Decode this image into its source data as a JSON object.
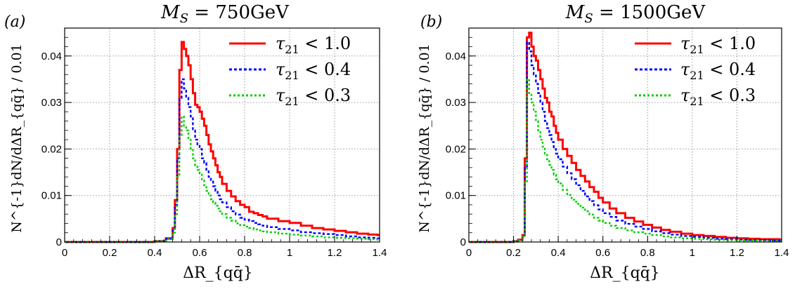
{
  "chart_data": [
    {
      "type": "line",
      "panel": "(a)",
      "title": "M_S = 750GeV",
      "title_main": "M",
      "title_sub": "S",
      "title_rest": " = 750GeV",
      "xlabel": "ΔR_{qq̄}",
      "ylabel": "N^{-1}dN/dΔR_{qq̄} / 0.01",
      "xlim": [
        0,
        1.4
      ],
      "ylim": [
        0,
        0.046
      ],
      "xticks": [
        "0",
        "0.2",
        "0.4",
        "0.6",
        "0.8",
        "1",
        "1.2",
        "1.4"
      ],
      "yticks": [
        "0",
        "0.01",
        "0.02",
        "0.03",
        "0.04"
      ],
      "grid": true,
      "legend_position": "top-right",
      "x": [
        0.0,
        0.1,
        0.2,
        0.3,
        0.4,
        0.45,
        0.48,
        0.49,
        0.5,
        0.51,
        0.52,
        0.53,
        0.54,
        0.55,
        0.56,
        0.57,
        0.58,
        0.59,
        0.6,
        0.61,
        0.62,
        0.63,
        0.64,
        0.65,
        0.66,
        0.67,
        0.68,
        0.69,
        0.7,
        0.72,
        0.74,
        0.76,
        0.78,
        0.8,
        0.82,
        0.84,
        0.86,
        0.88,
        0.9,
        0.95,
        1.0,
        1.05,
        1.1,
        1.15,
        1.2,
        1.25,
        1.3,
        1.35,
        1.39
      ],
      "series": [
        {
          "name": "τ21 < 1.0",
          "legend_sym": "τ",
          "legend_sub": "21",
          "legend_rest": " < 1.0",
          "color": "#ff0000",
          "dash": "",
          "values": [
            0.0,
            0.0,
            0.0,
            0.0,
            0.0002,
            0.0008,
            0.003,
            0.009,
            0.02,
            0.037,
            0.043,
            0.0415,
            0.04,
            0.038,
            0.035,
            0.032,
            0.0295,
            0.029,
            0.028,
            0.0265,
            0.025,
            0.023,
            0.021,
            0.0195,
            0.018,
            0.0165,
            0.015,
            0.014,
            0.0125,
            0.011,
            0.0098,
            0.0088,
            0.008,
            0.0075,
            0.0065,
            0.0062,
            0.0058,
            0.0055,
            0.005,
            0.0045,
            0.0041,
            0.0035,
            0.003,
            0.0027,
            0.0024,
            0.0021,
            0.0018,
            0.0016,
            0.0015
          ]
        },
        {
          "name": "τ21 < 0.4",
          "legend_sym": "τ",
          "legend_sub": "21",
          "legend_rest": " < 0.4",
          "color": "#0000ff",
          "dash": "4 3",
          "values": [
            0.0,
            0.0,
            0.0,
            0.0,
            0.0002,
            0.0007,
            0.0025,
            0.008,
            0.018,
            0.031,
            0.035,
            0.033,
            0.031,
            0.029,
            0.027,
            0.024,
            0.022,
            0.021,
            0.02,
            0.018,
            0.017,
            0.0155,
            0.014,
            0.013,
            0.012,
            0.011,
            0.01,
            0.0092,
            0.0085,
            0.0075,
            0.0066,
            0.0059,
            0.0052,
            0.0048,
            0.0045,
            0.0041,
            0.0038,
            0.0035,
            0.0032,
            0.0028,
            0.0025,
            0.0021,
            0.0019,
            0.0017,
            0.0015,
            0.0012,
            0.001,
            0.0009,
            0.0008
          ]
        },
        {
          "name": "τ21 < 0.3",
          "legend_sym": "τ",
          "legend_sub": "21",
          "legend_rest": " < 0.3",
          "color": "#00cc00",
          "dash": "3 3",
          "values": [
            0.0,
            0.0,
            0.0,
            0.0,
            0.0002,
            0.0006,
            0.002,
            0.006,
            0.014,
            0.023,
            0.027,
            0.025,
            0.024,
            0.022,
            0.02,
            0.018,
            0.0165,
            0.0155,
            0.0145,
            0.0133,
            0.0122,
            0.011,
            0.01,
            0.0092,
            0.0085,
            0.0078,
            0.0072,
            0.0066,
            0.006,
            0.0052,
            0.0046,
            0.004,
            0.0036,
            0.0033,
            0.003,
            0.0027,
            0.0025,
            0.0023,
            0.0021,
            0.0018,
            0.0016,
            0.0014,
            0.0012,
            0.001,
            0.0009,
            0.0008,
            0.0007,
            0.0006,
            0.0005
          ]
        }
      ]
    },
    {
      "type": "line",
      "panel": "(b)",
      "title": "M_S = 1500GeV",
      "title_main": "M",
      "title_sub": "S",
      "title_rest": " = 1500GeV",
      "xlabel": "ΔR_{qq̄}",
      "ylabel": "N^{-1}dN/dΔR_{qq̄} / 0.01",
      "xlim": [
        0,
        1.4
      ],
      "ylim": [
        0,
        0.046
      ],
      "xticks": [
        "0",
        "0.2",
        "0.4",
        "0.6",
        "0.8",
        "1",
        "1.2",
        "1.4"
      ],
      "yticks": [
        "0",
        "0.01",
        "0.02",
        "0.03",
        "0.04"
      ],
      "grid": true,
      "legend_position": "top-right",
      "x": [
        0.0,
        0.1,
        0.2,
        0.22,
        0.24,
        0.25,
        0.26,
        0.27,
        0.28,
        0.29,
        0.3,
        0.31,
        0.32,
        0.33,
        0.34,
        0.35,
        0.36,
        0.37,
        0.38,
        0.39,
        0.4,
        0.42,
        0.44,
        0.46,
        0.48,
        0.5,
        0.52,
        0.54,
        0.56,
        0.58,
        0.6,
        0.63,
        0.66,
        0.7,
        0.74,
        0.78,
        0.82,
        0.86,
        0.9,
        0.95,
        1.0,
        1.05,
        1.1,
        1.15,
        1.2,
        1.25,
        1.3,
        1.35,
        1.39
      ],
      "series": [
        {
          "name": "τ21 < 1.0",
          "legend_sym": "τ",
          "legend_sub": "21",
          "legend_rest": " < 1.0",
          "color": "#ff0000",
          "dash": "",
          "values": [
            0.0,
            0.0,
            0.0002,
            0.0005,
            0.0015,
            0.018,
            0.044,
            0.045,
            0.042,
            0.04,
            0.039,
            0.037,
            0.035,
            0.033,
            0.031,
            0.03,
            0.028,
            0.027,
            0.025,
            0.0235,
            0.022,
            0.02,
            0.0185,
            0.017,
            0.0155,
            0.0142,
            0.013,
            0.0118,
            0.0108,
            0.0095,
            0.0085,
            0.0072,
            0.0062,
            0.0052,
            0.0044,
            0.0037,
            0.0031,
            0.0026,
            0.0022,
            0.0018,
            0.0015,
            0.0013,
            0.0011,
            0.0009,
            0.0008,
            0.0007,
            0.0006,
            0.0006,
            0.0005
          ]
        },
        {
          "name": "τ21 < 0.4",
          "legend_sym": "τ",
          "legend_sub": "21",
          "legend_rest": " < 0.4",
          "color": "#0000ff",
          "dash": "4 3",
          "values": [
            0.0,
            0.0,
            0.0002,
            0.0004,
            0.0013,
            0.016,
            0.043,
            0.041,
            0.038,
            0.036,
            0.034,
            0.032,
            0.03,
            0.028,
            0.026,
            0.0245,
            0.023,
            0.0215,
            0.02,
            0.019,
            0.0178,
            0.0162,
            0.0148,
            0.0135,
            0.0122,
            0.011,
            0.0098,
            0.0088,
            0.0079,
            0.007,
            0.0062,
            0.0054,
            0.0046,
            0.0039,
            0.0033,
            0.0028,
            0.0023,
            0.0019,
            0.0016,
            0.0013,
            0.0011,
            0.0009,
            0.0007,
            0.0006,
            0.0005,
            0.0004,
            0.0004,
            0.0003,
            0.0003
          ]
        },
        {
          "name": "τ21 < 0.3",
          "legend_sym": "τ",
          "legend_sub": "21",
          "legend_rest": " < 0.3",
          "color": "#00cc00",
          "dash": "3 3",
          "values": [
            0.0,
            0.0,
            0.0002,
            0.0004,
            0.0012,
            0.013,
            0.035,
            0.032,
            0.03,
            0.028,
            0.026,
            0.024,
            0.022,
            0.0205,
            0.019,
            0.0178,
            0.0166,
            0.0155,
            0.0145,
            0.0135,
            0.0126,
            0.0112,
            0.0101,
            0.0091,
            0.0082,
            0.0074,
            0.0066,
            0.0059,
            0.0052,
            0.0046,
            0.0041,
            0.0035,
            0.003,
            0.0025,
            0.0021,
            0.0018,
            0.0015,
            0.0012,
            0.001,
            0.0008,
            0.0007,
            0.0006,
            0.0005,
            0.0004,
            0.0003,
            0.0003,
            0.0002,
            0.0002,
            0.0002
          ]
        }
      ]
    }
  ]
}
